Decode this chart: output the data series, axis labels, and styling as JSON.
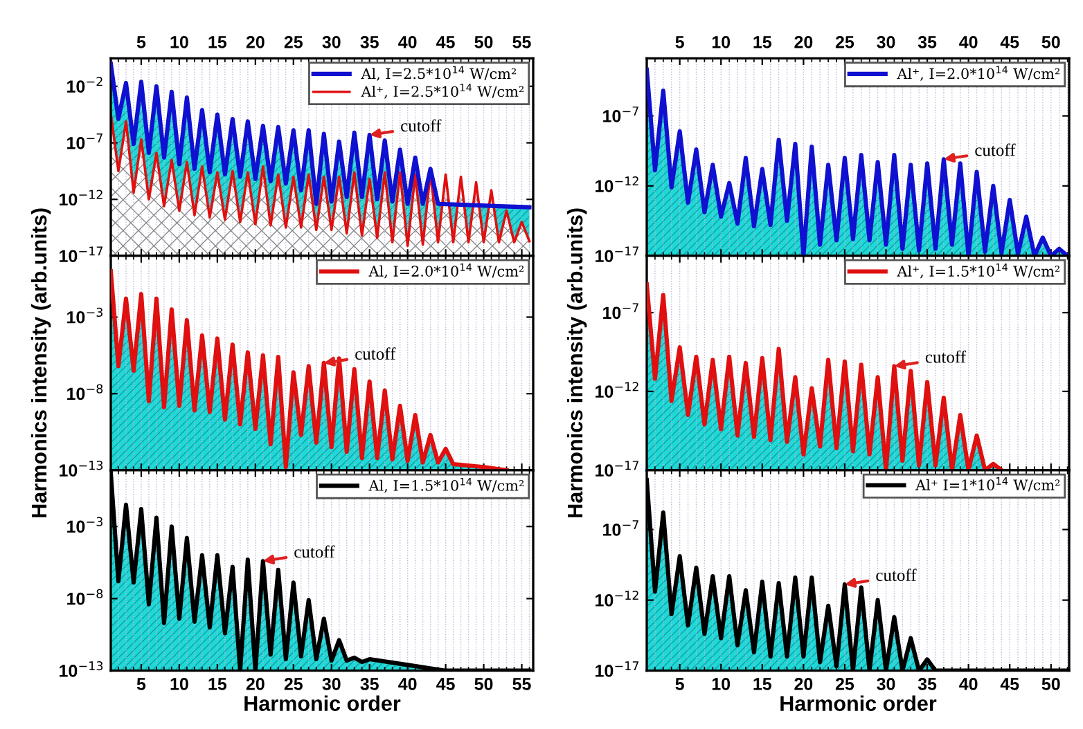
{
  "chart_data": [
    {
      "type": "area",
      "log": "y",
      "grid": "x",
      "legend": "top right",
      "xlim": [
        1,
        56.5
      ],
      "xticks": [
        5,
        10,
        15,
        20,
        25,
        30,
        35,
        40,
        45,
        50,
        55
      ],
      "ylim": [
        1e-17,
        3
      ],
      "yticks": [
        {
          "value": 0.01,
          "label": "10$^{−2}$"
        },
        {
          "value": 1e-07,
          "label": "10$^{−7}$"
        },
        {
          "value": 1e-12,
          "label": "10$^{−12}$"
        },
        {
          "value": 1e-17,
          "label": "10$^{−17}$"
        }
      ],
      "series": [
        {
          "name": "Al, I=2.5*10$^{14}$ W/cm²",
          "color": "#1010d0",
          "x": [
            1,
            2,
            3,
            4,
            5,
            6,
            7,
            8,
            9,
            10,
            11,
            12,
            13,
            14,
            15,
            16,
            17,
            18,
            19,
            20,
            21,
            22,
            23,
            24,
            25,
            26,
            27,
            28,
            29,
            30,
            31,
            32,
            33,
            34,
            35,
            36,
            37,
            38,
            39,
            40,
            41,
            42,
            43,
            44,
            48,
            52,
            56
          ],
          "values": [
            1,
            1.3e-05,
            0.02,
            8e-08,
            0.025,
            1.3e-08,
            0.01,
            5e-09,
            0.0032,
            1.3e-09,
            0.001,
            5e-10,
            8e-05,
            2.5e-10,
            3.2e-05,
            1.6e-10,
            1.3e-05,
            1e-10,
            8e-06,
            6.3e-11,
            3.2e-06,
            4e-11,
            2.5e-06,
            2.5e-11,
            1.3e-06,
            6.3e-12,
            1.3e-06,
            4e-13,
            6.3e-07,
            6.3e-13,
            1.3e-07,
            1.6e-12,
            8e-07,
            1.6e-12,
            5e-07,
            1e-12,
            1.6e-07,
            6.3e-13,
            2.5e-08,
            4e-13,
            5e-09,
            4e-13,
            5e-10,
            4e-13,
            3.2e-13,
            2.5e-13,
            2e-13
          ]
        },
        {
          "name": "Al⁺, I=2.5*10$^{14}$ W/cm²",
          "color": "#e01010",
          "x": [
            1,
            2,
            3,
            4,
            5,
            6,
            7,
            8,
            9,
            10,
            11,
            12,
            13,
            14,
            15,
            16,
            17,
            18,
            19,
            20,
            21,
            22,
            23,
            24,
            25,
            26,
            27,
            28,
            29,
            30,
            31,
            32,
            33,
            34,
            35,
            36,
            37,
            38,
            39,
            40,
            41,
            42,
            43,
            44,
            45,
            46,
            47,
            48,
            49,
            50,
            51,
            52,
            53,
            54,
            55,
            56
          ],
          "values": [
            4e-05,
            3.2e-10,
            8e-06,
            4e-12,
            2e-07,
            1e-12,
            1.3e-08,
            2.5e-13,
            3.2e-09,
            1e-13,
            2e-09,
            4e-14,
            8e-10,
            2.5e-14,
            2.5e-10,
            1.6e-14,
            3.2e-10,
            1e-14,
            2.5e-10,
            6.3e-15,
            8e-10,
            5e-15,
            1.6e-10,
            3.2e-15,
            1e-10,
            3.2e-15,
            1.6e-10,
            2e-15,
            1e-10,
            2e-15,
            1e-10,
            1e-15,
            2.5e-10,
            6.3e-16,
            6.3e-11,
            4e-16,
            2.5e-10,
            1.6e-16,
            2.5e-10,
            8e-17,
            1.6e-10,
            1e-16,
            2.5e-10,
            1.6e-16,
            1.6e-10,
            1.6e-16,
            1e-10,
            1.6e-16,
            3.2e-11,
            1.6e-16,
            6.3e-12,
            1.6e-16,
            1e-13,
            1.6e-16,
            1e-14,
            2e-16
          ]
        }
      ],
      "annotations": [
        {
          "text": "cutoff",
          "x": 35,
          "y": 5e-07
        }
      ]
    },
    {
      "type": "area",
      "log": "y",
      "grid": "x",
      "legend": "top right",
      "tick_labels": "y",
      "xlim": [
        1,
        56.5
      ],
      "xticks": [
        5,
        10,
        15,
        20,
        25,
        30,
        35,
        40,
        45,
        50,
        55
      ],
      "ylim": [
        1e-13,
        10
      ],
      "yticks": [
        {
          "value": 0.001,
          "label": "10$^{−3}$"
        },
        {
          "value": 1e-08,
          "label": "10$^{−8}$"
        },
        {
          "value": 1e-13,
          "label": "10$^{−13}$"
        }
      ],
      "ylabel": "Harmonics intensity (arb.units)",
      "series": [
        {
          "name": "Al, I=2.0*10$^{14}$ W/cm²",
          "color": "#e01010",
          "x": [
            1,
            2,
            3,
            4,
            5,
            6,
            7,
            8,
            9,
            10,
            11,
            12,
            13,
            14,
            15,
            16,
            17,
            18,
            19,
            20,
            21,
            22,
            23,
            24,
            25,
            26,
            27,
            28,
            29,
            30,
            31,
            32,
            33,
            34,
            35,
            36,
            37,
            38,
            39,
            40,
            41,
            42,
            43,
            44,
            45,
            46,
            50,
            53
          ],
          "values": [
            1,
            6.3e-07,
            0.016,
            3.2e-07,
            0.032,
            3.2e-09,
            0.016,
            1.3e-09,
            0.0032,
            1.6e-09,
            0.00063,
            8e-10,
            6.3e-05,
            6.3e-10,
            4e-05,
            2e-10,
            1.6e-05,
            1e-10,
            5e-06,
            5e-11,
            3.2e-06,
            5e-12,
            2.5e-06,
            1.6e-13,
            2.5e-07,
            2e-11,
            6.3e-07,
            6.3e-12,
            1e-06,
            3.2e-12,
            2e-06,
            1.6e-12,
            4e-07,
            6.3e-13,
            6.3e-08,
            6.3e-13,
            1.6e-08,
            5e-13,
            1.6e-09,
            4e-13,
            4e-10,
            3.2e-13,
            2e-11,
            3.2e-13,
            2.5e-12,
            2.5e-13,
            1.6e-13,
            1e-13
          ]
        }
      ],
      "annotations": [
        {
          "text": "cutoff",
          "x": 29,
          "y": 1e-06
        }
      ]
    },
    {
      "type": "area",
      "log": "y",
      "grid": "x",
      "legend": "top right",
      "xlim": [
        1,
        56.5
      ],
      "xticks": [
        5,
        10,
        15,
        20,
        25,
        30,
        35,
        40,
        45,
        50,
        55
      ],
      "ylim": [
        1e-13,
        8
      ],
      "yticks": [
        {
          "value": 0.001,
          "label": "10$^{−3}$"
        },
        {
          "value": 1e-08,
          "label": "10$^{−8}$"
        },
        {
          "value": 1e-13,
          "label": "10$^{−13}$"
        }
      ],
      "xlabel": "Harmonic order",
      "series": [
        {
          "name": "Al, I=1.5*10$^{14}$ W/cm²",
          "color": "#000000",
          "x": [
            1,
            2,
            3,
            4,
            5,
            6,
            7,
            8,
            9,
            10,
            11,
            12,
            13,
            14,
            15,
            16,
            17,
            18,
            19,
            20,
            21,
            22,
            23,
            24,
            25,
            26,
            27,
            28,
            29,
            30,
            31,
            32,
            33,
            34,
            35,
            40,
            45,
            56
          ],
          "values": [
            5,
            1.6e-07,
            0.032,
            1.3e-07,
            0.016,
            4e-09,
            0.004,
            2e-10,
            0.001,
            4e-10,
            0.00016,
            2.5e-10,
            1e-05,
            1e-10,
            1e-05,
            4e-11,
            1.6e-06,
            1e-13,
            5e-06,
            1e-13,
            4e-06,
            1.3e-12,
            1e-06,
            6.3e-13,
            1.3e-07,
            1e-12,
            8e-09,
            6.3e-13,
            4e-10,
            5e-13,
            1.3e-11,
            5e-13,
            8e-13,
            4e-13,
            6.3e-13,
            2.5e-13,
            1e-13,
            1e-13
          ]
        }
      ],
      "annotations": [
        {
          "text": "cutoff",
          "x": 21,
          "y": 4e-06
        }
      ]
    },
    {
      "type": "area",
      "log": "y",
      "grid": "x",
      "legend": "top right",
      "xlim": [
        1,
        52.2
      ],
      "xticks": [
        5,
        10,
        15,
        20,
        25,
        30,
        35,
        40,
        45,
        50
      ],
      "ylim": [
        1e-17,
        0.0013
      ],
      "yticks": [
        {
          "value": 1e-07,
          "label": "10$^{−7}$"
        },
        {
          "value": 1e-12,
          "label": "10$^{−12}$"
        },
        {
          "value": 1e-17,
          "label": "10$^{−17}$"
        }
      ],
      "series": [
        {
          "name": "Al⁺, I=2.0*10$^{14}$ W/cm²",
          "color": "#1010d0",
          "x": [
            1,
            2,
            3,
            4,
            5,
            6,
            7,
            8,
            9,
            10,
            11,
            12,
            13,
            14,
            15,
            16,
            17,
            18,
            19,
            20,
            21,
            22,
            23,
            24,
            25,
            26,
            27,
            28,
            29,
            30,
            31,
            32,
            33,
            34,
            35,
            36,
            37,
            38,
            39,
            40,
            41,
            42,
            43,
            44,
            45,
            46,
            47,
            48,
            49,
            50,
            51,
            52
          ],
          "values": [
            0.0002,
            1.3e-11,
            6.3e-06,
            8e-13,
            8e-09,
            6.3e-14,
            4e-10,
            1.3e-14,
            3.2e-11,
            6.3e-15,
            1.6e-12,
            2e-15,
            1e-10,
            1.3e-15,
            1.6e-11,
            1.6e-15,
            2e-09,
            3.2e-15,
            1e-09,
            1e-17,
            6.3e-10,
            6.3e-17,
            3.2e-11,
            1.3e-16,
            1e-10,
            1.6e-16,
            1.6e-10,
            1.3e-16,
            5e-11,
            6.3e-17,
            1.6e-10,
            3.2e-17,
            3.2e-11,
            2.5e-17,
            4e-11,
            3.2e-17,
            8e-11,
            6.3e-17,
            4e-11,
            1e-17,
            1e-11,
            2e-17,
            1e-12,
            1.6e-17,
            1e-13,
            1.3e-17,
            6.3e-15,
            1e-17,
            2e-16,
            1e-17,
            3.2e-17,
            1e-17
          ]
        }
      ],
      "annotations": [
        {
          "text": "cutoff",
          "x": 37,
          "y": 8e-11
        }
      ]
    },
    {
      "type": "area",
      "log": "y",
      "grid": "x",
      "legend": "top right",
      "tick_labels": "y",
      "xlim": [
        1,
        52.2
      ],
      "xticks": [
        5,
        10,
        15,
        20,
        25,
        30,
        35,
        40,
        45,
        50
      ],
      "ylim": [
        1e-17,
        0.0004
      ],
      "yticks": [
        {
          "value": 1e-07,
          "label": "10$^{−7}$"
        },
        {
          "value": 1e-12,
          "label": "10$^{−12}$"
        },
        {
          "value": 1e-17,
          "label": "10$^{−17}$"
        }
      ],
      "ylabel": "Harmonics intensity (arb.units)",
      "series": [
        {
          "name": "Al⁺, I=1.5*10$^{14}$ W/cm²",
          "color": "#e01010",
          "x": [
            1,
            2,
            3,
            4,
            5,
            6,
            7,
            8,
            9,
            10,
            11,
            12,
            13,
            14,
            15,
            16,
            17,
            18,
            19,
            20,
            21,
            22,
            23,
            24,
            25,
            26,
            27,
            28,
            29,
            30,
            31,
            32,
            33,
            34,
            35,
            36,
            37,
            38,
            39,
            40,
            41,
            42,
            43,
            44
          ],
          "values": [
            6.3e-06,
            6.3e-12,
            1.3e-06,
            2.5e-13,
            6.3e-10,
            3.2e-14,
            1.6e-10,
            8e-15,
            1e-10,
            4e-15,
            1.6e-10,
            1.6e-15,
            6.3e-11,
            1.3e-15,
            1.3e-10,
            8e-16,
            5e-10,
            6.3e-16,
            8e-12,
            1e-16,
            1.6e-12,
            3.2e-16,
            1e-10,
            2.5e-16,
            8e-11,
            1.6e-16,
            5e-11,
            1e-16,
            8e-12,
            1e-17,
            4e-11,
            4e-17,
            2e-11,
            2e-17,
            4e-12,
            2e-17,
            4e-13,
            1e-17,
            3.2e-14,
            1e-17,
            1.6e-15,
            1e-17,
            2.5e-17,
            1e-17
          ]
        }
      ],
      "annotations": [
        {
          "text": "cutoff",
          "x": 31,
          "y": 4e-11
        }
      ]
    },
    {
      "type": "area",
      "log": "y",
      "grid": "x",
      "legend": "top right",
      "xlim": [
        1,
        52.2
      ],
      "xticks": [
        5,
        10,
        15,
        20,
        25,
        30,
        35,
        40,
        45,
        50
      ],
      "ylim": [
        1e-17,
        0.0016
      ],
      "yticks": [
        {
          "value": 1e-07,
          "label": "10$^{−7}$"
        },
        {
          "value": 1e-12,
          "label": "10$^{−12}$"
        },
        {
          "value": 1e-17,
          "label": "10$^{−17}$"
        }
      ],
      "xlabel": "Harmonic order",
      "series": [
        {
          "name": "Al⁺ I=1*10$^{14}$ W/cm²",
          "color": "#000000",
          "x": [
            1,
            2,
            3,
            4,
            5,
            6,
            7,
            8,
            9,
            10,
            11,
            12,
            13,
            14,
            15,
            16,
            17,
            18,
            19,
            20,
            21,
            22,
            23,
            24,
            25,
            26,
            27,
            28,
            29,
            30,
            31,
            32,
            33,
            34,
            35,
            36,
            44,
            52
          ],
          "values": [
            0.00032,
            4e-12,
            1.6e-06,
            1e-13,
            1.3e-09,
            1.6e-14,
            2e-10,
            4e-15,
            5e-11,
            2e-15,
            5e-11,
            6.3e-16,
            5e-12,
            2e-16,
            2e-11,
            1e-16,
            1.6e-11,
            1e-16,
            4e-11,
            1e-16,
            4e-11,
            4e-17,
            4e-13,
            2e-17,
            1.3e-11,
            1e-17,
            8e-12,
            1e-17,
            1e-12,
            1e-17,
            6.3e-14,
            1e-17,
            2e-15,
            1e-17,
            6.3e-17,
            1e-17,
            1e-17,
            1e-17
          ]
        }
      ],
      "annotations": [
        {
          "text": "cutoff",
          "x": 25,
          "y": 1.3e-11
        }
      ]
    }
  ]
}
